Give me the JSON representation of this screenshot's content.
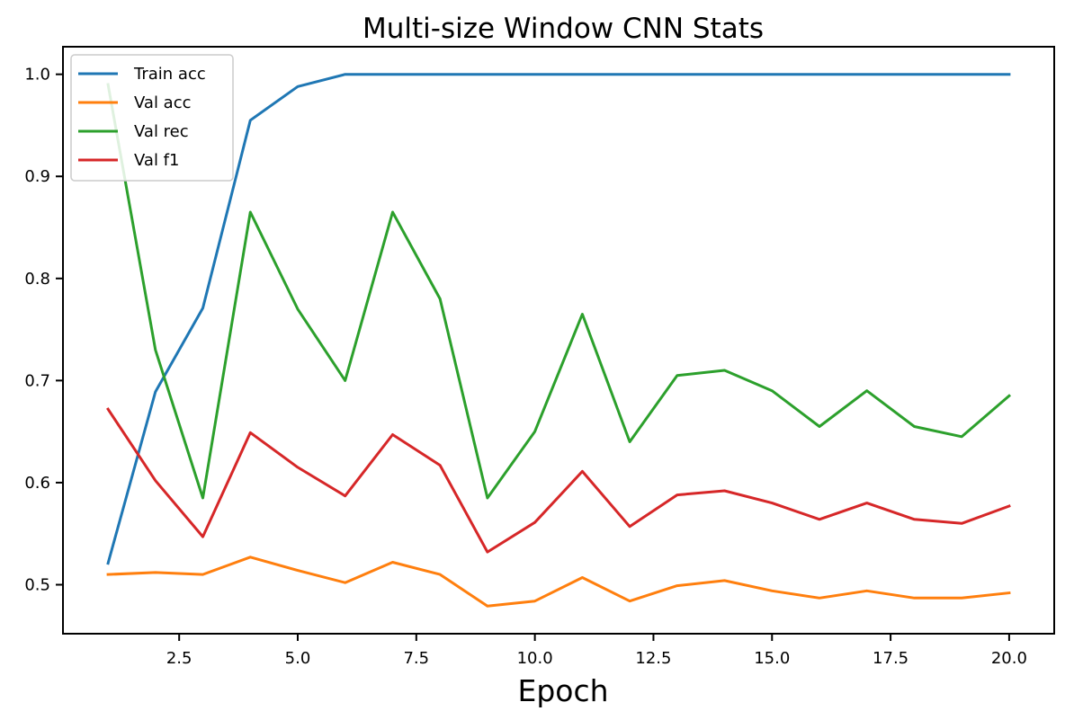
{
  "chart_data": {
    "type": "line",
    "title": "Multi-size Window CNN Stats",
    "xlabel": "Epoch",
    "ylabel": "",
    "xlim": [
      0.05,
      20.95
    ],
    "ylim": [
      0.452,
      1.027
    ],
    "xticks": [
      2.5,
      5.0,
      7.5,
      10.0,
      12.5,
      15.0,
      17.5,
      20.0
    ],
    "xtick_labels": [
      "2.5",
      "5.0",
      "7.5",
      "10.0",
      "12.5",
      "15.0",
      "17.5",
      "20.0"
    ],
    "yticks": [
      0.5,
      0.6,
      0.7,
      0.8,
      0.9,
      1.0
    ],
    "ytick_labels": [
      "0.5",
      "0.6",
      "0.7",
      "0.8",
      "0.9",
      "1.0"
    ],
    "grid": false,
    "legend_position": "top-left",
    "x": [
      1,
      2,
      3,
      4,
      5,
      6,
      7,
      8,
      9,
      10,
      11,
      12,
      13,
      14,
      15,
      16,
      17,
      18,
      19,
      20
    ],
    "series": [
      {
        "name": "Train acc",
        "color": "#1f77b4",
        "values": [
          0.521,
          0.689,
          0.771,
          0.955,
          0.988,
          1.0,
          1.0,
          1.0,
          1.0,
          1.0,
          1.0,
          1.0,
          1.0,
          1.0,
          1.0,
          1.0,
          1.0,
          1.0,
          1.0,
          1.0
        ]
      },
      {
        "name": "Val acc",
        "color": "#ff7f0e",
        "values": [
          0.51,
          0.512,
          0.51,
          0.527,
          0.514,
          0.502,
          0.522,
          0.51,
          0.479,
          0.484,
          0.507,
          0.484,
          0.499,
          0.504,
          0.494,
          0.487,
          0.494,
          0.487,
          0.487,
          0.492
        ]
      },
      {
        "name": "Val rec",
        "color": "#2ca02c",
        "values": [
          0.99,
          0.73,
          0.585,
          0.865,
          0.77,
          0.7,
          0.865,
          0.78,
          0.585,
          0.65,
          0.765,
          0.64,
          0.705,
          0.71,
          0.69,
          0.655,
          0.69,
          0.655,
          0.645,
          0.685
        ]
      },
      {
        "name": "Val f1",
        "color": "#d62728",
        "values": [
          0.672,
          0.602,
          0.547,
          0.649,
          0.615,
          0.587,
          0.647,
          0.617,
          0.532,
          0.561,
          0.611,
          0.557,
          0.588,
          0.592,
          0.58,
          0.564,
          0.58,
          0.564,
          0.56,
          0.577
        ]
      }
    ]
  }
}
